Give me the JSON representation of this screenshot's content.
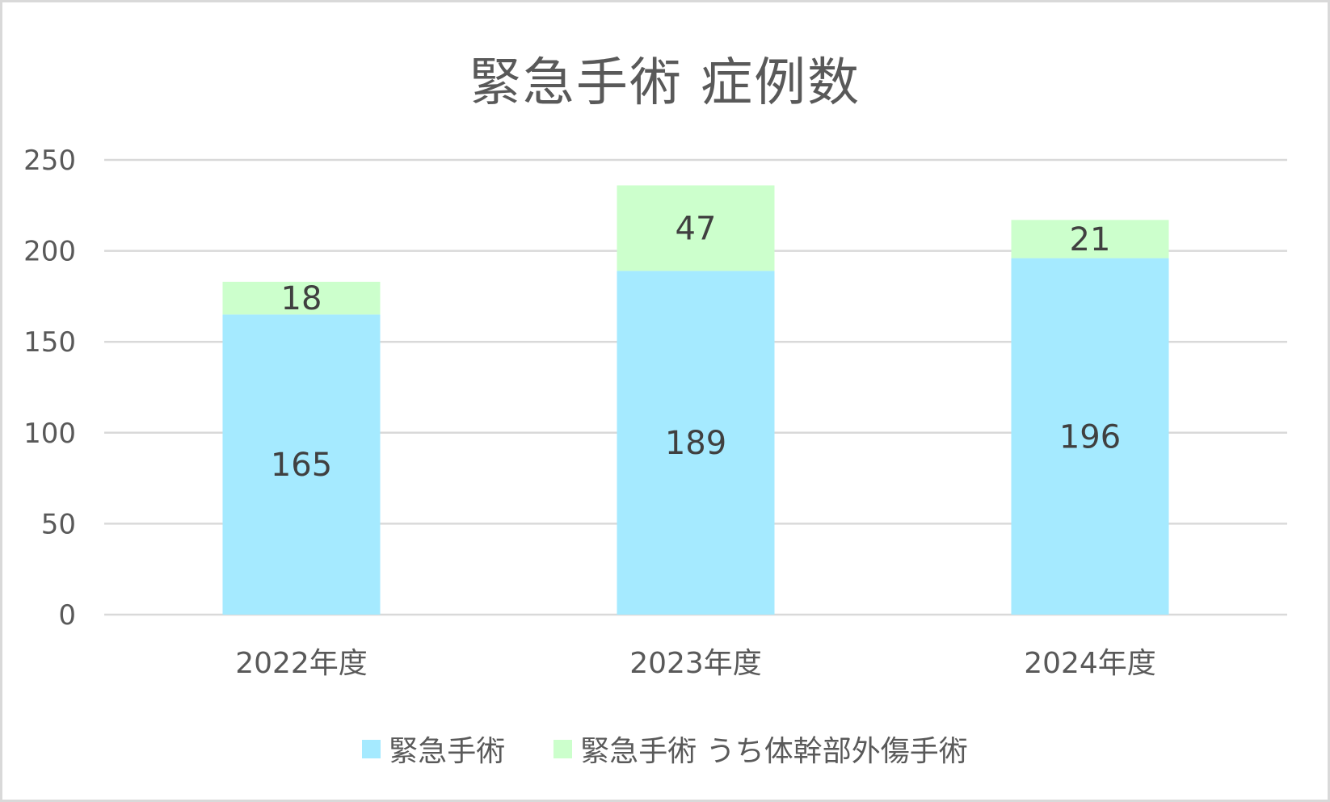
{
  "colors": {
    "series1": "#a5eaff",
    "series2": "#ccffcc",
    "grid": "#d9d9d9",
    "axis_text": "#595959",
    "label_text": "#404040"
  },
  "chart_data": {
    "type": "bar",
    "stacked": true,
    "title": "緊急手術 症例数",
    "categories": [
      "2022年度",
      "2023年度",
      "2024年度"
    ],
    "series": [
      {
        "name": "緊急手術",
        "values": [
          165,
          189,
          196
        ],
        "color": "#a5eaff"
      },
      {
        "name": "緊急手術 うち体幹部外傷手術",
        "values": [
          18,
          47,
          21
        ],
        "color": "#ccffcc"
      }
    ],
    "ylim": [
      0,
      250
    ],
    "yticks": [
      0,
      50,
      100,
      150,
      200,
      250
    ],
    "grid": true,
    "legend_position": "bottom"
  }
}
